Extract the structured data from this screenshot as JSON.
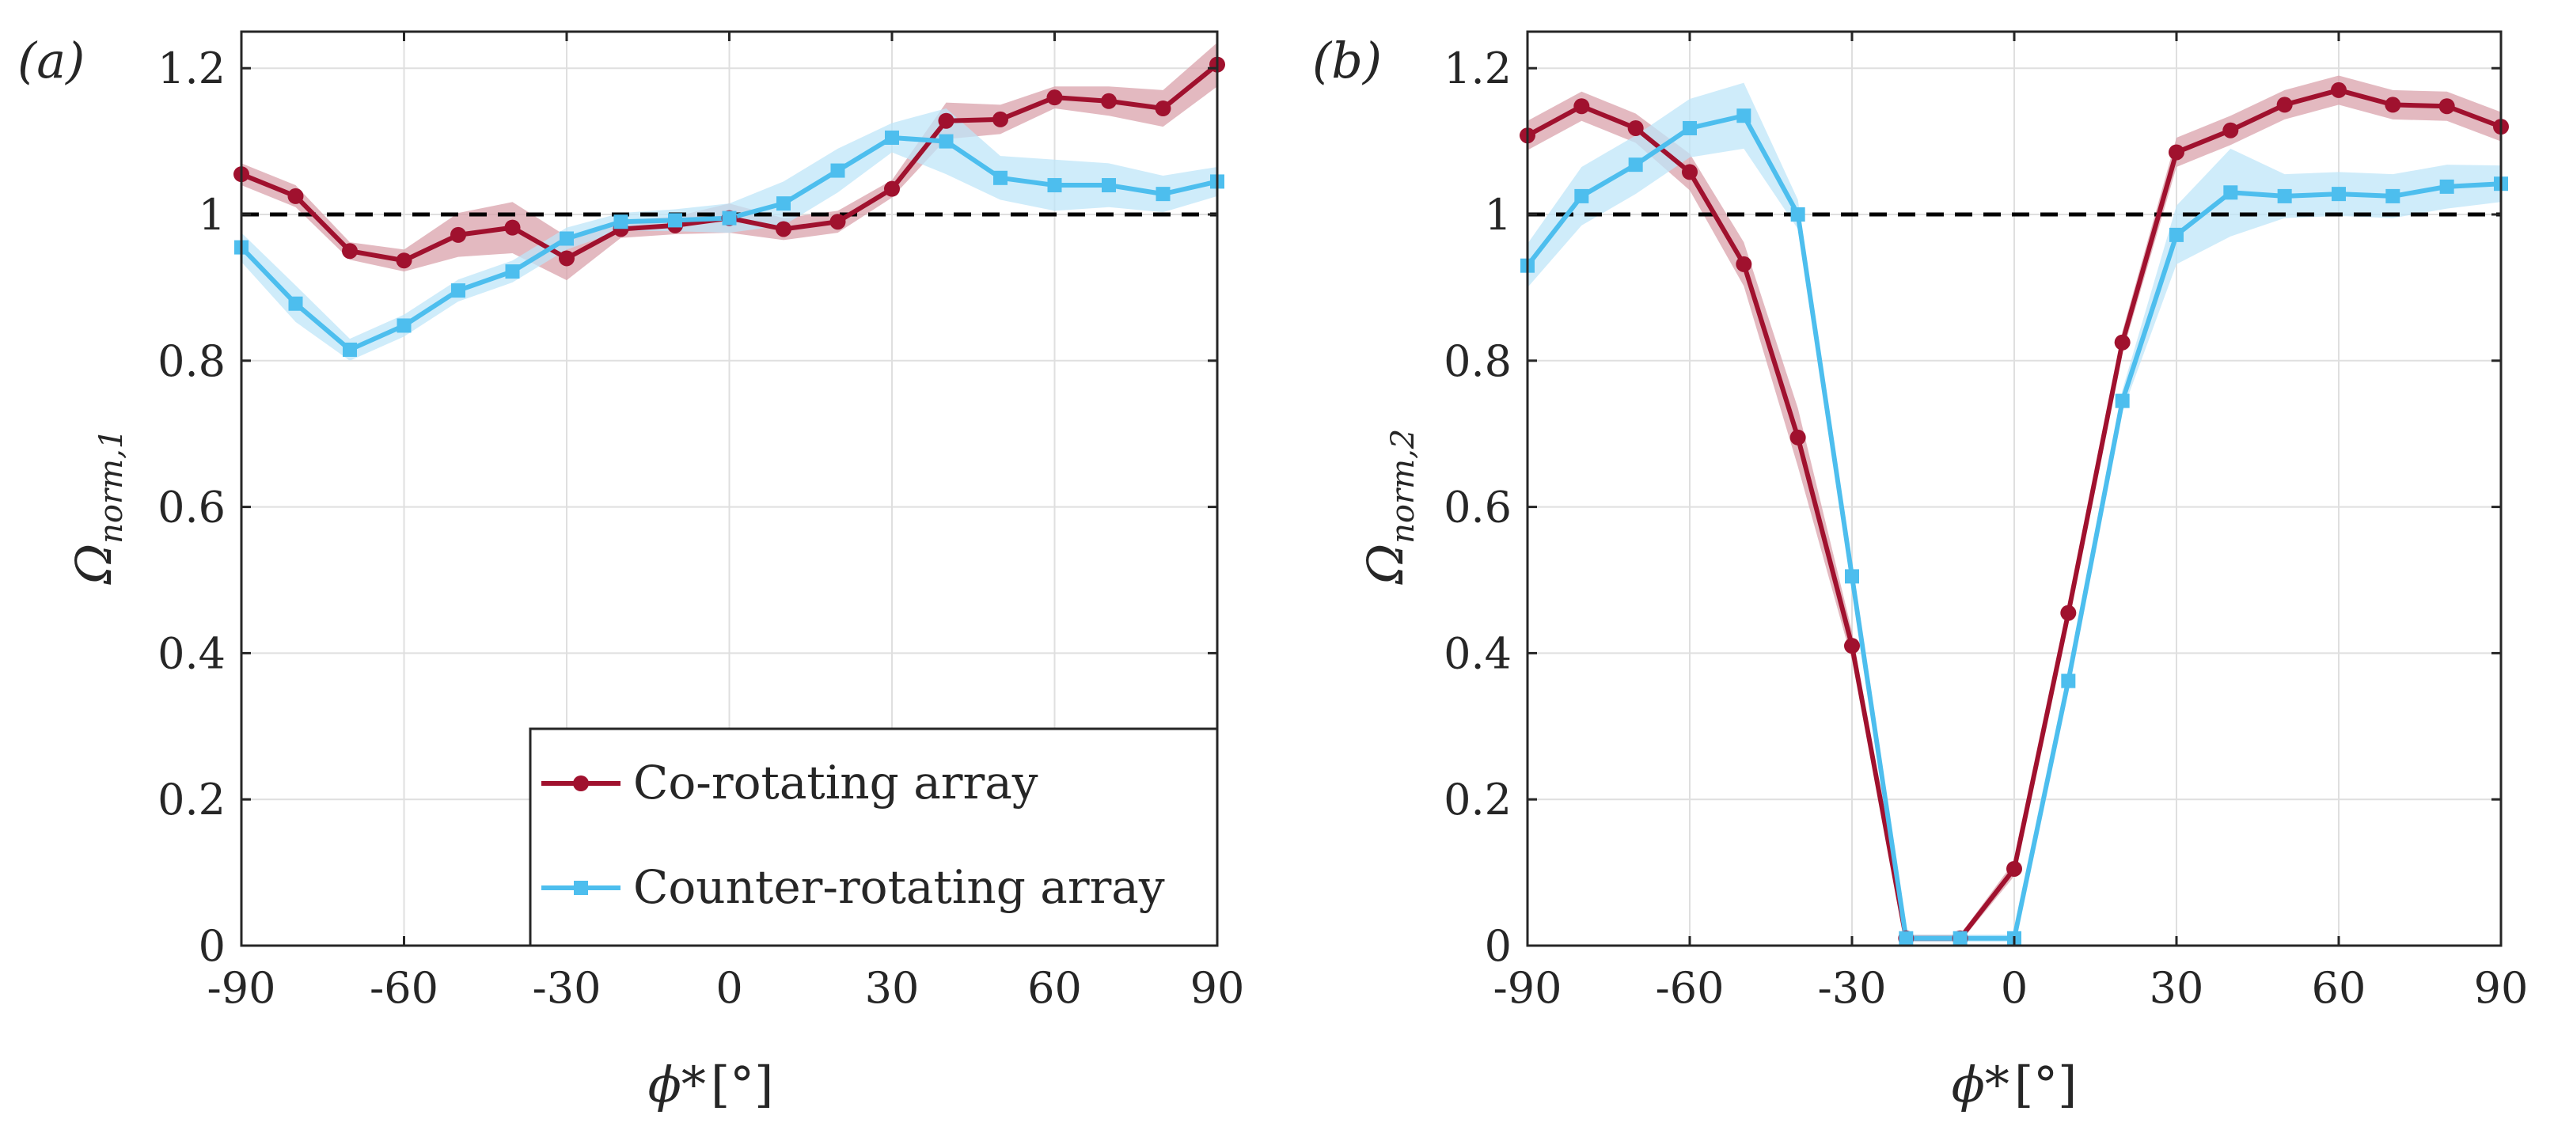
{
  "chart_data": [
    {
      "type": "line",
      "panel_label": "(a)",
      "ylabel": {
        "main": "Ω",
        "sub": "norm,1"
      },
      "xlabel": {
        "main": "ϕ*",
        "unit": "[°]"
      },
      "xlim": [
        -90,
        90
      ],
      "ylim": [
        0,
        1.25
      ],
      "xticks": [
        -90,
        -60,
        -30,
        0,
        30,
        60,
        90
      ],
      "yticks": [
        0,
        0.2,
        0.4,
        0.6,
        0.8,
        1,
        1.2
      ],
      "xtick_labels": [
        "-90",
        "-60",
        "-30",
        "0",
        "30",
        "60",
        "90"
      ],
      "ytick_labels": [
        "0",
        "0.2",
        "0.4",
        "0.6",
        "0.8",
        "1",
        "1.2"
      ],
      "grid": true,
      "reference_line": 1,
      "x": [
        -90,
        -80,
        -70,
        -60,
        -50,
        -40,
        -30,
        -20,
        -10,
        0,
        10,
        20,
        30,
        40,
        50,
        60,
        70,
        80,
        90
      ],
      "series": [
        {
          "name": "Co-rotating array",
          "marker": "circle",
          "values": [
            1.055,
            1.025,
            0.95,
            0.937,
            0.972,
            0.982,
            0.94,
            0.98,
            0.985,
            0.995,
            0.98,
            0.99,
            1.035,
            1.128,
            1.13,
            1.16,
            1.155,
            1.145,
            1.205
          ],
          "band": [
            0.015,
            0.015,
            0.012,
            0.015,
            0.03,
            0.035,
            0.03,
            0.012,
            0.012,
            0.02,
            0.015,
            0.015,
            0.012,
            0.025,
            0.02,
            0.015,
            0.02,
            0.025,
            0.03
          ]
        },
        {
          "name": "Counter-rotating array",
          "marker": "square",
          "values": [
            0.955,
            0.878,
            0.815,
            0.848,
            0.896,
            0.922,
            0.967,
            0.99,
            0.992,
            0.995,
            1.015,
            1.06,
            1.105,
            1.1,
            1.05,
            1.04,
            1.04,
            1.028,
            1.045
          ],
          "band": [
            0.02,
            0.025,
            0.015,
            0.015,
            0.015,
            0.015,
            0.015,
            0.012,
            0.015,
            0.02,
            0.03,
            0.03,
            0.02,
            0.045,
            0.03,
            0.035,
            0.03,
            0.025,
            0.02
          ]
        }
      ],
      "legend": {
        "placement": "bottom-right",
        "entries": [
          "Co-rotating array",
          "Counter-rotating array"
        ]
      }
    },
    {
      "type": "line",
      "panel_label": "(b)",
      "ylabel": {
        "main": "Ω",
        "sub": "norm,2"
      },
      "xlabel": {
        "main": "ϕ*",
        "unit": "[°]"
      },
      "xlim": [
        -90,
        90
      ],
      "ylim": [
        0,
        1.25
      ],
      "xticks": [
        -90,
        -60,
        -30,
        0,
        30,
        60,
        90
      ],
      "yticks": [
        0,
        0.2,
        0.4,
        0.6,
        0.8,
        1,
        1.2
      ],
      "xtick_labels": [
        "-90",
        "-60",
        "-30",
        "0",
        "30",
        "60",
        "90"
      ],
      "ytick_labels": [
        "0",
        "0.2",
        "0.4",
        "0.6",
        "0.8",
        "1",
        "1.2"
      ],
      "grid": true,
      "reference_line": 1,
      "x": [
        -90,
        -80,
        -70,
        -60,
        -50,
        -40,
        -30,
        -20,
        -10,
        0,
        10,
        20,
        30,
        40,
        50,
        60,
        70,
        80,
        90
      ],
      "series": [
        {
          "name": "Co-rotating array",
          "marker": "circle",
          "values": [
            1.108,
            1.148,
            1.118,
            1.058,
            0.932,
            0.695,
            0.41,
            0.01,
            0.01,
            0.105,
            0.455,
            0.825,
            1.085,
            1.115,
            1.15,
            1.17,
            1.15,
            1.148,
            1.12
          ],
          "band": [
            0.02,
            0.02,
            0.02,
            0.025,
            0.03,
            0.04,
            0.02,
            0.005,
            0.005,
            0.01,
            0.01,
            0.015,
            0.02,
            0.02,
            0.02,
            0.02,
            0.02,
            0.02,
            0.02
          ]
        },
        {
          "name": "Counter-rotating array",
          "marker": "square",
          "values": [
            0.93,
            1.025,
            1.068,
            1.118,
            1.135,
            1.0,
            0.505,
            0.01,
            0.01,
            0.01,
            0.362,
            0.745,
            0.972,
            1.03,
            1.025,
            1.028,
            1.025,
            1.038,
            1.042
          ],
          "band": [
            0.03,
            0.04,
            0.04,
            0.04,
            0.045,
            0.02,
            0.01,
            0.005,
            0.005,
            0.005,
            0.01,
            0.015,
            0.04,
            0.06,
            0.03,
            0.03,
            0.03,
            0.03,
            0.025
          ]
        }
      ]
    }
  ],
  "colors": {
    "co_rotating": "#A0112E",
    "co_rotating_band": "#D9A2AB",
    "counter_rotating": "#4DBEEE",
    "counter_rotating_band": "#BFE6F8",
    "reference_line": "#000000",
    "grid": "#DFDFDF",
    "axis": "#262626"
  }
}
